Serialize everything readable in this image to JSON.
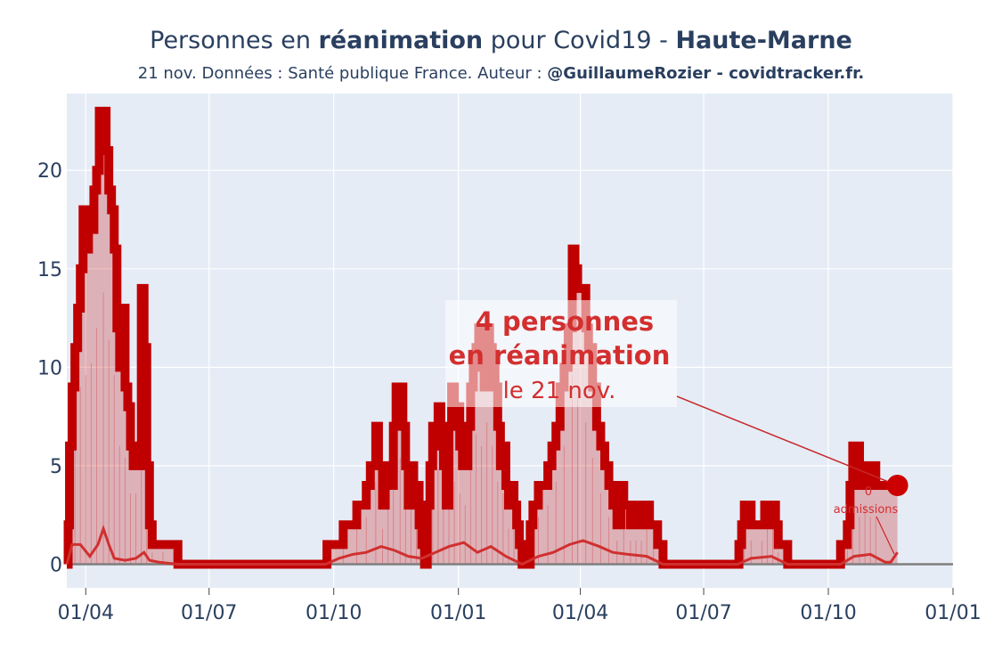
{
  "header": {
    "title_pre": "Personnes en ",
    "title_bold": "réanimation",
    "title_mid": " pour Covid19 - ",
    "title_region": "Haute-Marne",
    "subtitle_pre": "21 nov. Données : Santé publique France. Auteur : ",
    "subtitle_bold": "@GuillaumeRozier - covidtracker.fr."
  },
  "annotation": {
    "line1": "4 personnes",
    "line2": "en réanimation",
    "line3": "le 21 nov."
  },
  "small_label": {
    "line1": "0",
    "line2": "admissions"
  },
  "colors": {
    "plot_bg": "#e5ecf6",
    "main_line": "#c00000",
    "fill": "rgba(200,0,0,0.25)",
    "admissions": "#d0302f",
    "baseline": "#7f7f7f",
    "text": "#2a3f5f"
  },
  "chart_data": {
    "type": "line",
    "title": "Personnes en réanimation pour Covid19 - Haute-Marne",
    "xlabel": "",
    "ylabel": "",
    "ylim": [
      -1.2,
      23.9
    ],
    "xlim": [
      "2020-03-18",
      "2022-01-01"
    ],
    "x_ticks": [
      "2020-04-01",
      "2020-07-01",
      "2020-10-01",
      "2021-01-01",
      "2021-04-01",
      "2021-07-01",
      "2021-10-01",
      "2022-01-01"
    ],
    "x_tick_labels": [
      "01/04",
      "01/07",
      "01/10",
      "01/01",
      "01/04",
      "01/07",
      "01/10",
      "01/01"
    ],
    "y_ticks": [
      0,
      5,
      10,
      15,
      20
    ],
    "grid": true,
    "series": [
      {
        "values_note": "",
        "name": "",
        "points": [
          [
            "2020-03-18",
            0
          ],
          [
            "2020-03-19",
            2
          ],
          [
            "2020-03-20",
            6
          ],
          [
            "2020-03-22",
            9
          ],
          [
            "2020-03-24",
            11
          ],
          [
            "2020-03-26",
            13
          ],
          [
            "2020-03-28",
            15
          ],
          [
            "2020-03-30",
            18
          ],
          [
            "2020-04-01",
            16
          ],
          [
            "2020-04-03",
            18
          ],
          [
            "2020-04-05",
            17
          ],
          [
            "2020-04-07",
            19
          ],
          [
            "2020-04-09",
            20
          ],
          [
            "2020-04-11",
            23
          ],
          [
            "2020-04-14",
            23
          ],
          [
            "2020-04-16",
            21
          ],
          [
            "2020-04-18",
            19
          ],
          [
            "2020-04-20",
            18
          ],
          [
            "2020-04-22",
            16
          ],
          [
            "2020-04-24",
            12
          ],
          [
            "2020-04-26",
            10
          ],
          [
            "2020-04-28",
            13
          ],
          [
            "2020-04-30",
            9
          ],
          [
            "2020-05-02",
            8
          ],
          [
            "2020-05-04",
            6
          ],
          [
            "2020-05-06",
            5
          ],
          [
            "2020-05-08",
            6
          ],
          [
            "2020-05-10",
            5
          ],
          [
            "2020-05-12",
            14
          ],
          [
            "2020-05-14",
            11
          ],
          [
            "2020-05-16",
            5
          ],
          [
            "2020-05-18",
            2
          ],
          [
            "2020-05-20",
            1
          ],
          [
            "2020-05-24",
            1
          ],
          [
            "2020-05-28",
            1
          ],
          [
            "2020-06-01",
            1
          ],
          [
            "2020-06-05",
            1
          ],
          [
            "2020-06-08",
            0
          ],
          [
            "2020-06-30",
            0
          ],
          [
            "2020-08-01",
            0
          ],
          [
            "2020-09-01",
            0
          ],
          [
            "2020-09-24",
            0
          ],
          [
            "2020-09-26",
            1
          ],
          [
            "2020-10-05",
            1
          ],
          [
            "2020-10-08",
            2
          ],
          [
            "2020-10-15",
            2
          ],
          [
            "2020-10-18",
            3
          ],
          [
            "2020-10-22",
            3
          ],
          [
            "2020-10-25",
            4
          ],
          [
            "2020-10-28",
            5
          ],
          [
            "2020-11-01",
            7
          ],
          [
            "2020-11-03",
            5
          ],
          [
            "2020-11-06",
            3
          ],
          [
            "2020-11-08",
            4
          ],
          [
            "2020-11-10",
            5
          ],
          [
            "2020-11-12",
            4
          ],
          [
            "2020-11-14",
            7
          ],
          [
            "2020-11-16",
            9
          ],
          [
            "2020-11-19",
            9
          ],
          [
            "2020-11-21",
            7
          ],
          [
            "2020-11-23",
            5
          ],
          [
            "2020-11-25",
            3
          ],
          [
            "2020-11-27",
            5
          ],
          [
            "2020-11-29",
            3
          ],
          [
            "2020-12-01",
            4
          ],
          [
            "2020-12-03",
            2
          ],
          [
            "2020-12-05",
            1
          ],
          [
            "2020-12-07",
            0
          ],
          [
            "2020-12-09",
            3
          ],
          [
            "2020-12-11",
            5
          ],
          [
            "2020-12-13",
            7
          ],
          [
            "2020-12-15",
            6
          ],
          [
            "2020-12-17",
            8
          ],
          [
            "2020-12-19",
            7
          ],
          [
            "2020-12-21",
            5
          ],
          [
            "2020-12-23",
            3
          ],
          [
            "2020-12-25",
            7
          ],
          [
            "2020-12-27",
            9
          ],
          [
            "2020-12-29",
            7
          ],
          [
            "2020-12-31",
            8
          ],
          [
            "2021-01-02",
            6
          ],
          [
            "2021-01-04",
            5
          ],
          [
            "2021-01-06",
            5
          ],
          [
            "2021-01-08",
            7
          ],
          [
            "2021-01-10",
            9
          ],
          [
            "2021-01-12",
            10
          ],
          [
            "2021-01-14",
            11
          ],
          [
            "2021-01-16",
            12
          ],
          [
            "2021-01-18",
            10
          ],
          [
            "2021-01-20",
            9
          ],
          [
            "2021-01-22",
            12
          ],
          [
            "2021-01-24",
            11
          ],
          [
            "2021-01-26",
            10
          ],
          [
            "2021-01-28",
            9
          ],
          [
            "2021-01-30",
            7
          ],
          [
            "2021-02-01",
            5
          ],
          [
            "2021-02-03",
            6
          ],
          [
            "2021-02-05",
            4
          ],
          [
            "2021-02-07",
            3
          ],
          [
            "2021-02-09",
            4
          ],
          [
            "2021-02-11",
            3
          ],
          [
            "2021-02-13",
            2
          ],
          [
            "2021-02-15",
            1
          ],
          [
            "2021-02-17",
            0
          ],
          [
            "2021-02-21",
            0
          ],
          [
            "2021-02-23",
            2
          ],
          [
            "2021-02-25",
            3
          ],
          [
            "2021-02-27",
            3
          ],
          [
            "2021-03-01",
            4
          ],
          [
            "2021-03-05",
            4
          ],
          [
            "2021-03-08",
            5
          ],
          [
            "2021-03-11",
            6
          ],
          [
            "2021-03-14",
            7
          ],
          [
            "2021-03-17",
            9
          ],
          [
            "2021-03-20",
            10
          ],
          [
            "2021-03-23",
            12
          ],
          [
            "2021-03-26",
            16
          ],
          [
            "2021-03-28",
            15
          ],
          [
            "2021-03-30",
            14
          ],
          [
            "2021-04-02",
            14
          ],
          [
            "2021-04-05",
            12
          ],
          [
            "2021-04-07",
            11
          ],
          [
            "2021-04-10",
            9
          ],
          [
            "2021-04-13",
            7
          ],
          [
            "2021-04-16",
            6
          ],
          [
            "2021-04-19",
            5
          ],
          [
            "2021-04-22",
            4
          ],
          [
            "2021-04-25",
            3
          ],
          [
            "2021-04-28",
            2
          ],
          [
            "2021-05-01",
            4
          ],
          [
            "2021-05-03",
            3
          ],
          [
            "2021-05-05",
            3
          ],
          [
            "2021-05-08",
            2
          ],
          [
            "2021-05-10",
            3
          ],
          [
            "2021-05-12",
            2
          ],
          [
            "2021-05-14",
            3
          ],
          [
            "2021-05-16",
            2
          ],
          [
            "2021-05-18",
            2
          ],
          [
            "2021-05-20",
            3
          ],
          [
            "2021-05-22",
            2
          ],
          [
            "2021-05-25",
            2
          ],
          [
            "2021-05-28",
            1
          ],
          [
            "2021-06-01",
            0
          ],
          [
            "2021-06-15",
            0
          ],
          [
            "2021-07-01",
            0
          ],
          [
            "2021-07-25",
            0
          ],
          [
            "2021-07-27",
            1
          ],
          [
            "2021-07-29",
            2
          ],
          [
            "2021-07-31",
            3
          ],
          [
            "2021-08-03",
            3
          ],
          [
            "2021-08-05",
            2
          ],
          [
            "2021-08-10",
            2
          ],
          [
            "2021-08-13",
            2
          ],
          [
            "2021-08-15",
            3
          ],
          [
            "2021-08-17",
            3
          ],
          [
            "2021-08-19",
            2
          ],
          [
            "2021-08-21",
            3
          ],
          [
            "2021-08-23",
            2
          ],
          [
            "2021-08-25",
            1
          ],
          [
            "2021-08-29",
            1
          ],
          [
            "2021-09-01",
            0
          ],
          [
            "2021-09-20",
            0
          ],
          [
            "2021-10-01",
            0
          ],
          [
            "2021-10-08",
            0
          ],
          [
            "2021-10-10",
            1
          ],
          [
            "2021-10-13",
            1
          ],
          [
            "2021-10-15",
            2
          ],
          [
            "2021-10-17",
            4
          ],
          [
            "2021-10-19",
            6
          ],
          [
            "2021-10-22",
            6
          ],
          [
            "2021-10-24",
            4
          ],
          [
            "2021-10-26",
            4
          ],
          [
            "2021-10-28",
            5
          ],
          [
            "2021-10-30",
            5
          ],
          [
            "2021-11-01",
            4
          ],
          [
            "2021-11-03",
            5
          ],
          [
            "2021-11-05",
            4
          ],
          [
            "2021-11-21",
            4
          ]
        ]
      },
      {
        "name": "",
        "points": [
          [
            "2020-03-18",
            0
          ],
          [
            "2020-03-22",
            1
          ],
          [
            "2020-03-28",
            1
          ],
          [
            "2020-04-04",
            0.4
          ],
          [
            "2020-04-10",
            1
          ],
          [
            "2020-04-14",
            1.8
          ],
          [
            "2020-04-18",
            1
          ],
          [
            "2020-04-22",
            0.3
          ],
          [
            "2020-04-30",
            0.2
          ],
          [
            "2020-05-08",
            0.3
          ],
          [
            "2020-05-14",
            0.6
          ],
          [
            "2020-05-18",
            0.2
          ],
          [
            "2020-05-25",
            0.1
          ],
          [
            "2020-06-08",
            0
          ],
          [
            "2020-09-25",
            0
          ],
          [
            "2020-10-05",
            0.3
          ],
          [
            "2020-10-15",
            0.5
          ],
          [
            "2020-10-25",
            0.6
          ],
          [
            "2020-11-05",
            0.9
          ],
          [
            "2020-11-15",
            0.7
          ],
          [
            "2020-11-25",
            0.4
          ],
          [
            "2020-12-05",
            0.3
          ],
          [
            "2020-12-15",
            0.6
          ],
          [
            "2020-12-25",
            0.9
          ],
          [
            "2021-01-05",
            1.1
          ],
          [
            "2021-01-15",
            0.6
          ],
          [
            "2021-01-25",
            0.9
          ],
          [
            "2021-02-05",
            0.4
          ],
          [
            "2021-02-17",
            0
          ],
          [
            "2021-03-01",
            0.4
          ],
          [
            "2021-03-12",
            0.6
          ],
          [
            "2021-03-24",
            1.0
          ],
          [
            "2021-04-03",
            1.2
          ],
          [
            "2021-04-15",
            0.9
          ],
          [
            "2021-04-25",
            0.6
          ],
          [
            "2021-05-06",
            0.5
          ],
          [
            "2021-05-20",
            0.4
          ],
          [
            "2021-06-01",
            0
          ],
          [
            "2021-07-26",
            0
          ],
          [
            "2021-08-05",
            0.3
          ],
          [
            "2021-08-20",
            0.4
          ],
          [
            "2021-09-01",
            0
          ],
          [
            "2021-10-10",
            0
          ],
          [
            "2021-10-20",
            0.4
          ],
          [
            "2021-11-01",
            0.5
          ],
          [
            "2021-11-12",
            0.1
          ],
          [
            "2021-11-16",
            0.1
          ],
          [
            "2021-11-21",
            0.6
          ]
        ]
      }
    ],
    "annotation_point": [
      "2021-11-21",
      4
    ]
  }
}
